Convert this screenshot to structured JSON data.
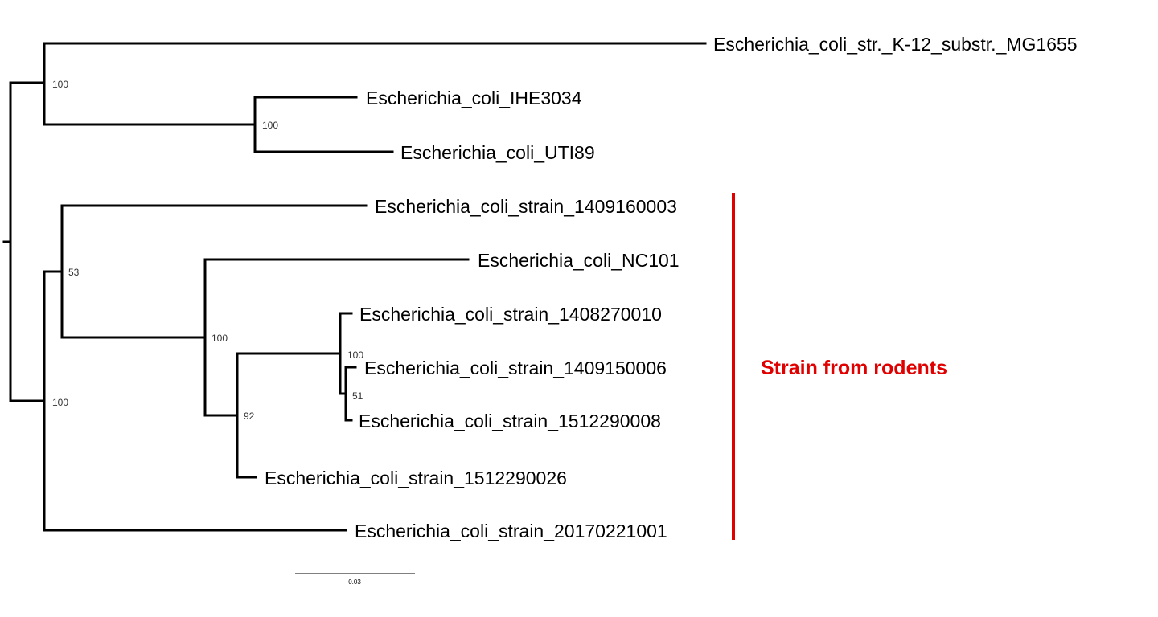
{
  "tree": {
    "leaves": [
      {
        "id": "mg1655",
        "label": "Escherichia_coli_str._K-12_substr._MG1655"
      },
      {
        "id": "ihe3034",
        "label": "Escherichia_coli_IHE3034"
      },
      {
        "id": "uti89",
        "label": "Escherichia_coli_UTI89"
      },
      {
        "id": "s1409160003",
        "label": "Escherichia_coli_strain_1409160003"
      },
      {
        "id": "nc101",
        "label": "Escherichia_coli_NC101"
      },
      {
        "id": "s1408270010",
        "label": "Escherichia_coli_strain_1408270010"
      },
      {
        "id": "s1409150006",
        "label": "Escherichia_coli_strain_1409150006"
      },
      {
        "id": "s1512290008",
        "label": "Escherichia_coli_strain_1512290008"
      },
      {
        "id": "s1512290026",
        "label": "Escherichia_coli_strain_1512290026"
      },
      {
        "id": "s20170221001",
        "label": "Escherichia_coli_strain_20170221001"
      }
    ],
    "support_values": {
      "clade_a": "100",
      "clade_ihe_uti": "100",
      "clade_b": "100",
      "clade_c": "53",
      "clade_d": "100",
      "clade_e": "92",
      "clade_f": "100",
      "clade_g": "51"
    },
    "scale_bar": {
      "label": "0.03",
      "value": 0.03
    }
  },
  "annotation": {
    "label": "Strain from rodents",
    "color": "#e00000"
  }
}
